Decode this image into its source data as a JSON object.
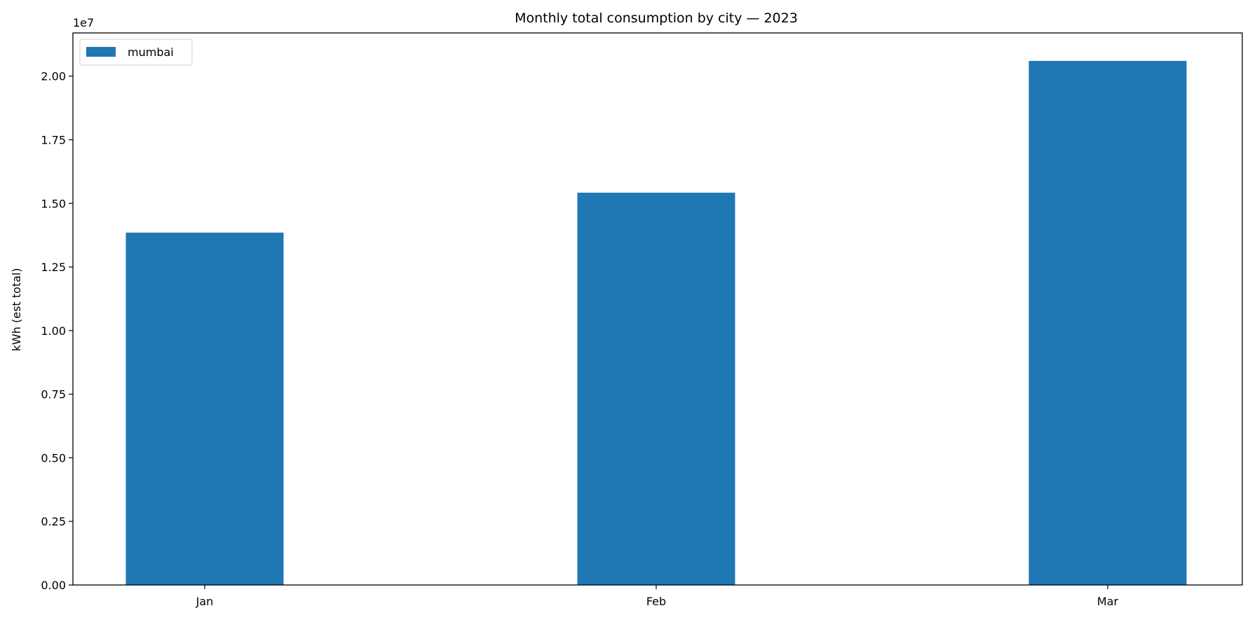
{
  "chart_data": {
    "type": "bar",
    "title": "Monthly total consumption by city — 2023",
    "xlabel": "",
    "ylabel": "kWh (est total)",
    "scale_label": "1e7",
    "categories": [
      "Jan",
      "Feb",
      "Mar"
    ],
    "series": [
      {
        "name": "mumbai",
        "color": "#1f77b4",
        "values": [
          13850000,
          15420000,
          20600000
        ]
      }
    ],
    "ylim": [
      0,
      21700000
    ],
    "yticks": [
      0,
      2500000,
      5000000,
      7500000,
      10000000,
      12500000,
      15000000,
      17500000,
      20000000
    ],
    "ytick_labels": [
      "0.00",
      "0.25",
      "0.50",
      "0.75",
      "1.00",
      "1.25",
      "1.50",
      "1.75",
      "2.00"
    ],
    "grid": false,
    "legend_position": "top-left"
  }
}
